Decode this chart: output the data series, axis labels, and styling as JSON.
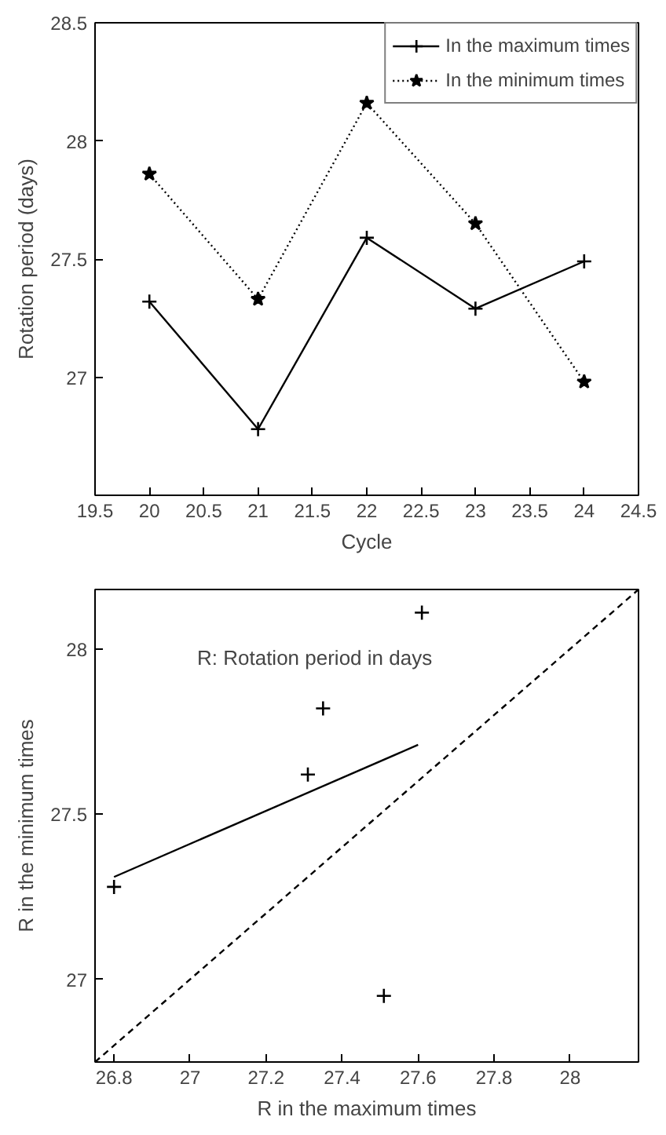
{
  "chart_data": [
    {
      "type": "line",
      "xlabel": "Cycle",
      "ylabel": "Rotation period (days)",
      "x": [
        20,
        21,
        22,
        23,
        24
      ],
      "series": [
        {
          "name": "In the maximum times",
          "color": "#000000",
          "values": [
            27.32,
            26.78,
            27.59,
            27.29,
            27.49
          ],
          "marker": "cross",
          "line_style": "solid"
        },
        {
          "name": "In the minimum times",
          "color": "#000000",
          "values": [
            27.86,
            27.33,
            28.16,
            27.65,
            26.98
          ],
          "marker": "star",
          "line_style": "dotted"
        }
      ],
      "xlim": [
        19.5,
        24.5
      ],
      "xticks": [
        19.5,
        20,
        20.5,
        21,
        21.5,
        22,
        22.5,
        23,
        23.5,
        24,
        24.5
      ],
      "ylim": [
        26.5,
        28.5
      ],
      "yticks": [
        27,
        27.5,
        28,
        28.5
      ],
      "grid": false,
      "legend": "top right"
    },
    {
      "type": "scatter",
      "xlabel": "R in the maximum times",
      "ylabel": "R in the minimum times",
      "annotations": [
        "R: Rotation period in days"
      ],
      "series": [
        {
          "type": "scatter",
          "color": "#000000",
          "x": [
            26.8,
            27.31,
            27.35,
            27.51,
            27.61
          ],
          "values": [
            27.28,
            27.62,
            27.82,
            26.95,
            28.11
          ],
          "marker": "cross"
        },
        {
          "type": "line",
          "color": "#000000",
          "x": [
            26.8,
            27.6
          ],
          "values": [
            27.31,
            27.71
          ],
          "marker": "none",
          "line_style": "solid"
        },
        {
          "type": "line",
          "color": "#000000",
          "x": [
            26.75,
            28.18
          ],
          "values": [
            26.75,
            28.18
          ],
          "marker": "none",
          "line_style": "dashed"
        }
      ],
      "xlim": [
        26.75,
        28.18
      ],
      "xticks": [
        26.8,
        27,
        27.2,
        27.4,
        27.6,
        27.8,
        28
      ],
      "ylim": [
        26.75,
        28.18
      ],
      "yticks": [
        27,
        27.5,
        28
      ],
      "grid": false,
      "legend": false
    }
  ]
}
